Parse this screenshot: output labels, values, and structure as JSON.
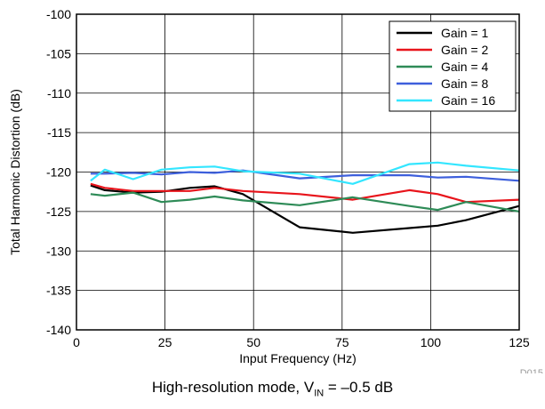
{
  "chart_data": {
    "type": "line",
    "title": "",
    "xlabel": "Input Frequency (Hz)",
    "ylabel": "Total Harmonic Distortion (dB)",
    "xlim": [
      0,
      125
    ],
    "ylim": [
      -140,
      -100
    ],
    "xticks": [
      0,
      25,
      50,
      75,
      100,
      125
    ],
    "yticks": [
      -140,
      -135,
      -130,
      -125,
      -120,
      -115,
      -110,
      -105,
      -100
    ],
    "grid": true,
    "legend_position": "top-right",
    "series": [
      {
        "name": "Gain = 1",
        "color": "#000000",
        "x": [
          4,
          8,
          16,
          24,
          32,
          39,
          47,
          63,
          78,
          94,
          102,
          110,
          125
        ],
        "y": [
          -121.7,
          -122.3,
          -122.6,
          -122.5,
          -122.0,
          -121.8,
          -122.8,
          -127.0,
          -127.7,
          -127.1,
          -126.8,
          -126.1,
          -124.3
        ]
      },
      {
        "name": "Gain = 2",
        "color": "#e8141b",
        "x": [
          4,
          8,
          16,
          24,
          32,
          39,
          47,
          63,
          78,
          94,
          102,
          110,
          125
        ],
        "y": [
          -121.5,
          -122.0,
          -122.4,
          -122.4,
          -122.4,
          -122.0,
          -122.4,
          -122.8,
          -123.5,
          -122.3,
          -122.8,
          -123.8,
          -123.5
        ]
      },
      {
        "name": "Gain = 4",
        "color": "#2e8b57",
        "x": [
          4,
          8,
          16,
          24,
          32,
          39,
          47,
          63,
          78,
          94,
          102,
          110,
          125
        ],
        "y": [
          -122.8,
          -123.0,
          -122.6,
          -123.8,
          -123.5,
          -123.1,
          -123.6,
          -124.2,
          -123.2,
          -124.3,
          -124.8,
          -123.8,
          -125.0
        ]
      },
      {
        "name": "Gain = 8",
        "color": "#3d5fdc",
        "x": [
          4,
          8,
          16,
          24,
          32,
          39,
          47,
          63,
          78,
          94,
          102,
          110,
          125
        ],
        "y": [
          -120.2,
          -120.2,
          -120.1,
          -120.3,
          -120.0,
          -120.1,
          -119.8,
          -120.8,
          -120.4,
          -120.4,
          -120.7,
          -120.6,
          -121.1
        ]
      },
      {
        "name": "Gain = 16",
        "color": "#33e6ff",
        "x": [
          4,
          8,
          16,
          24,
          32,
          39,
          47,
          63,
          78,
          94,
          102,
          110,
          125
        ],
        "y": [
          -121.1,
          -119.7,
          -120.9,
          -119.7,
          -119.4,
          -119.3,
          -119.9,
          -120.2,
          -121.5,
          -119.0,
          -118.8,
          -119.2,
          -119.8
        ]
      }
    ]
  },
  "figure_id": "D015",
  "caption": {
    "prefix": "High-resolution mode, V",
    "subscript": "IN",
    "suffix": " = –0.5 dB"
  }
}
